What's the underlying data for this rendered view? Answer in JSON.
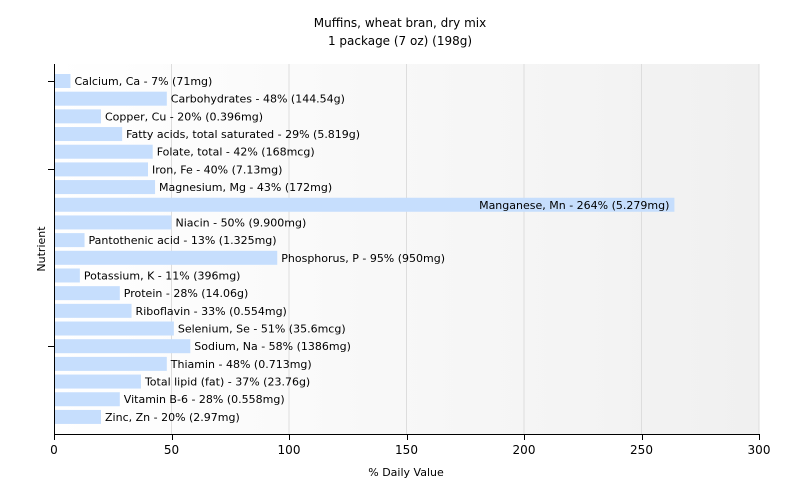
{
  "chart_data": {
    "type": "bar",
    "orientation": "horizontal",
    "title": "Muffins, wheat bran, dry mix",
    "subtitle": "1 package (7 oz) (198g)",
    "xlabel": "% Daily Value",
    "ylabel": "Nutrient",
    "xlim": [
      0,
      300
    ],
    "xticks": [
      0,
      50,
      100,
      150,
      200,
      250,
      300
    ],
    "grid": true,
    "bar_color": "#c6defd",
    "categories": [
      "Calcium, Ca",
      "Carbohydrates",
      "Copper, Cu",
      "Fatty acids, total saturated",
      "Folate, total",
      "Iron, Fe",
      "Magnesium, Mg",
      "Manganese, Mn",
      "Niacin",
      "Pantothenic acid",
      "Phosphorus, P",
      "Potassium, K",
      "Protein",
      "Riboflavin",
      "Selenium, Se",
      "Sodium, Na",
      "Thiamin",
      "Total lipid (fat)",
      "Vitamin B-6",
      "Zinc, Zn"
    ],
    "values": [
      7,
      48,
      20,
      29,
      42,
      40,
      43,
      264,
      50,
      13,
      95,
      11,
      28,
      33,
      51,
      58,
      48,
      37,
      28,
      20
    ],
    "labels": [
      "Calcium, Ca - 7% (71mg)",
      "Carbohydrates - 48% (144.54g)",
      "Copper, Cu - 20% (0.396mg)",
      "Fatty acids, total saturated - 29% (5.819g)",
      "Folate, total - 42% (168mcg)",
      "Iron, Fe - 40% (7.13mg)",
      "Magnesium, Mg - 43% (172mg)",
      "Manganese, Mn - 264% (5.279mg)",
      "Niacin - 50% (9.900mg)",
      "Pantothenic acid - 13% (1.325mg)",
      "Phosphorus, P - 95% (950mg)",
      "Potassium, K - 11% (396mg)",
      "Protein - 28% (14.06g)",
      "Riboflavin - 33% (0.554mg)",
      "Selenium, Se - 51% (35.6mcg)",
      "Sodium, Na - 58% (1386mg)",
      "Thiamin - 48% (0.713mg)",
      "Total lipid (fat) - 37% (23.76g)",
      "Vitamin B-6 - 28% (0.558mg)",
      "Zinc, Zn - 20% (2.97mg)"
    ]
  }
}
